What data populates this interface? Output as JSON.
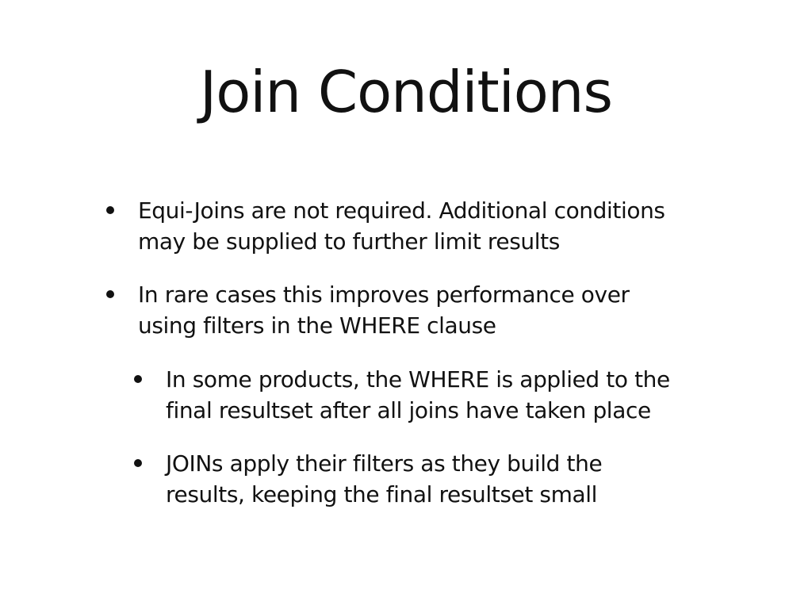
{
  "slide": {
    "title": "Join Conditions",
    "bullets": [
      {
        "level": 1,
        "lines": [
          "Equi-Joins are not required. Additional conditions",
          "may be supplied to further limit results"
        ]
      },
      {
        "level": 1,
        "lines": [
          "In rare cases this improves performance over",
          "using filters in the WHERE clause"
        ]
      },
      {
        "level": 2,
        "lines": [
          "In some products, the WHERE is applied to the",
          "final resultset after all joins have taken place"
        ]
      },
      {
        "level": 2,
        "lines": [
          "JOINs apply their filters as they build the",
          "results, keeping the final resultset small"
        ]
      }
    ]
  }
}
